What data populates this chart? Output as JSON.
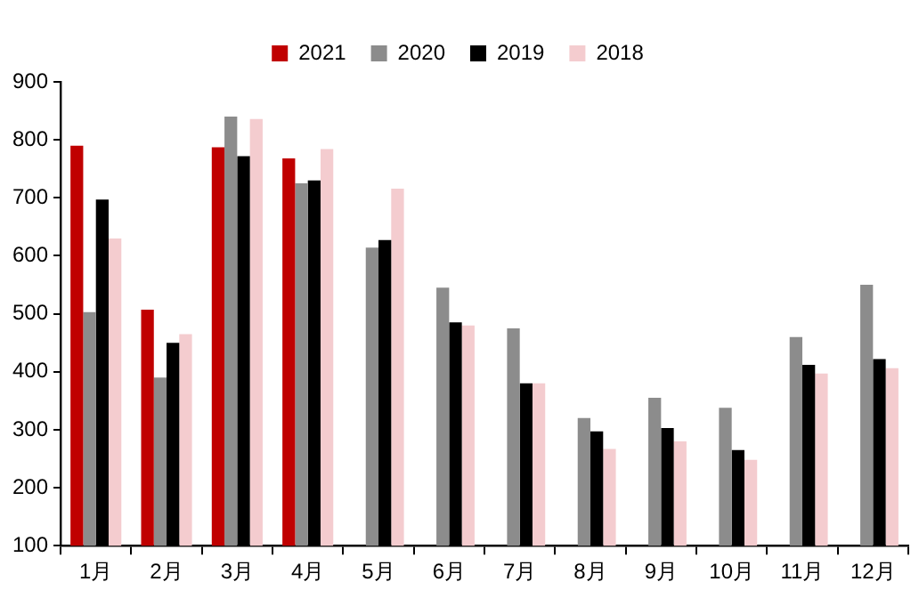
{
  "chart_data": {
    "type": "bar",
    "categories": [
      "1月",
      "2月",
      "3月",
      "4月",
      "5月",
      "6月",
      "7月",
      "8月",
      "9月",
      "10月",
      "11月",
      "12月"
    ],
    "series": [
      {
        "name": "2021",
        "color": "#c00000",
        "values": [
          790,
          507,
          787,
          768,
          null,
          null,
          null,
          null,
          null,
          null,
          null,
          null
        ]
      },
      {
        "name": "2020",
        "color": "#8c8c8c",
        "values": [
          503,
          390,
          840,
          725,
          614,
          545,
          475,
          320,
          355,
          338,
          460,
          550
        ]
      },
      {
        "name": "2019",
        "color": "#000000",
        "values": [
          697,
          450,
          772,
          730,
          627,
          485,
          380,
          297,
          303,
          265,
          412,
          422
        ]
      },
      {
        "name": "2018",
        "color": "#f4cccf",
        "values": [
          630,
          465,
          836,
          784,
          716,
          480,
          380,
          267,
          280,
          248,
          397,
          406
        ]
      }
    ],
    "ylim": [
      100,
      900
    ],
    "yticks": [
      100,
      200,
      300,
      400,
      500,
      600,
      700,
      800,
      900
    ],
    "grid": false,
    "legend": "top"
  }
}
